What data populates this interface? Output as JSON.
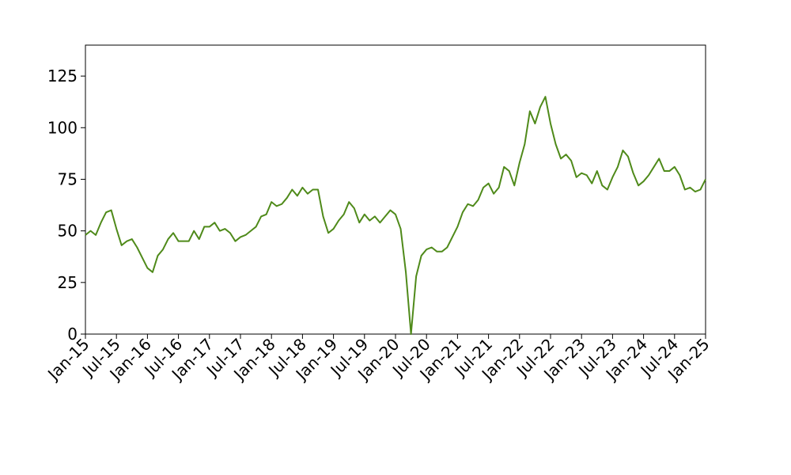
{
  "chart_data": {
    "type": "line",
    "x": [
      "2015-01",
      "2015-02",
      "2015-03",
      "2015-04",
      "2015-05",
      "2015-06",
      "2015-07",
      "2015-08",
      "2015-09",
      "2015-10",
      "2015-11",
      "2015-12",
      "2016-01",
      "2016-02",
      "2016-03",
      "2016-04",
      "2016-05",
      "2016-06",
      "2016-07",
      "2016-08",
      "2016-09",
      "2016-10",
      "2016-11",
      "2016-12",
      "2017-01",
      "2017-02",
      "2017-03",
      "2017-04",
      "2017-05",
      "2017-06",
      "2017-07",
      "2017-08",
      "2017-09",
      "2017-10",
      "2017-11",
      "2017-12",
      "2018-01",
      "2018-02",
      "2018-03",
      "2018-04",
      "2018-05",
      "2018-06",
      "2018-07",
      "2018-08",
      "2018-09",
      "2018-10",
      "2018-11",
      "2018-12",
      "2019-01",
      "2019-02",
      "2019-03",
      "2019-04",
      "2019-05",
      "2019-06",
      "2019-07",
      "2019-08",
      "2019-09",
      "2019-10",
      "2019-11",
      "2019-12",
      "2020-01",
      "2020-02",
      "2020-03",
      "2020-04",
      "2020-05",
      "2020-06",
      "2020-07",
      "2020-08",
      "2020-09",
      "2020-10",
      "2020-11",
      "2020-12",
      "2021-01",
      "2021-02",
      "2021-03",
      "2021-04",
      "2021-05",
      "2021-06",
      "2021-07",
      "2021-08",
      "2021-09",
      "2021-10",
      "2021-11",
      "2021-12",
      "2022-01",
      "2022-02",
      "2022-03",
      "2022-04",
      "2022-05",
      "2022-06",
      "2022-07",
      "2022-08",
      "2022-09",
      "2022-10",
      "2022-11",
      "2022-12",
      "2023-01",
      "2023-02",
      "2023-03",
      "2023-04",
      "2023-05",
      "2023-06",
      "2023-07",
      "2023-08",
      "2023-09",
      "2023-10",
      "2023-11",
      "2023-12",
      "2024-01",
      "2024-02",
      "2024-03",
      "2024-04",
      "2024-05",
      "2024-06",
      "2024-07",
      "2024-08",
      "2024-09",
      "2024-10",
      "2024-11",
      "2024-12",
      "2025-01"
    ],
    "series": [
      {
        "color": "#4f8a1a",
        "values": [
          48,
          50,
          48,
          54,
          59,
          60,
          51,
          43,
          45,
          46,
          42,
          37,
          32,
          30,
          38,
          41,
          46,
          49,
          45,
          45,
          45,
          50,
          46,
          52,
          52,
          54,
          50,
          51,
          49,
          45,
          47,
          48,
          50,
          52,
          57,
          58,
          64,
          62,
          63,
          66,
          70,
          67,
          71,
          68,
          70,
          70,
          57,
          49,
          51,
          55,
          58,
          64,
          61,
          54,
          58,
          55,
          57,
          54,
          57,
          60,
          58,
          51,
          30,
          0,
          28,
          38,
          41,
          42,
          40,
          40,
          42,
          47,
          52,
          59,
          63,
          62,
          65,
          71,
          73,
          68,
          71,
          81,
          79,
          72,
          83,
          92,
          108,
          102,
          110,
          115,
          102,
          92,
          85,
          87,
          84,
          76,
          78,
          77,
          73,
          79,
          72,
          70,
          76,
          81,
          89,
          86,
          78,
          72,
          74,
          77,
          81,
          85,
          79,
          79,
          81,
          77,
          70,
          71,
          69,
          70,
          75
        ]
      }
    ],
    "xlim": [
      "2015-01",
      "2025-01"
    ],
    "xticks": [
      {
        "value": "2015-01",
        "label": "Jan-15"
      },
      {
        "value": "2015-07",
        "label": "Jul-15"
      },
      {
        "value": "2016-01",
        "label": "Jan-16"
      },
      {
        "value": "2016-07",
        "label": "Jul-16"
      },
      {
        "value": "2017-01",
        "label": "Jan-17"
      },
      {
        "value": "2017-07",
        "label": "Jul-17"
      },
      {
        "value": "2018-01",
        "label": "Jan-18"
      },
      {
        "value": "2018-07",
        "label": "Jul-18"
      },
      {
        "value": "2019-01",
        "label": "Jan-19"
      },
      {
        "value": "2019-07",
        "label": "Jul-19"
      },
      {
        "value": "2020-01",
        "label": "Jan-20"
      },
      {
        "value": "2020-07",
        "label": "Jul-20"
      },
      {
        "value": "2021-01",
        "label": "Jan-21"
      },
      {
        "value": "2021-07",
        "label": "Jul-21"
      },
      {
        "value": "2022-01",
        "label": "Jan-22"
      },
      {
        "value": "2022-07",
        "label": "Jul-22"
      },
      {
        "value": "2023-01",
        "label": "Jan-23"
      },
      {
        "value": "2023-07",
        "label": "Jul-23"
      },
      {
        "value": "2024-01",
        "label": "Jan-24"
      },
      {
        "value": "2024-07",
        "label": "Jul-24"
      },
      {
        "value": "2025-01",
        "label": "Jan-25"
      }
    ],
    "ylim": [
      0,
      140
    ],
    "yticks": [
      0,
      25,
      50,
      75,
      100,
      125
    ],
    "grid": false
  }
}
